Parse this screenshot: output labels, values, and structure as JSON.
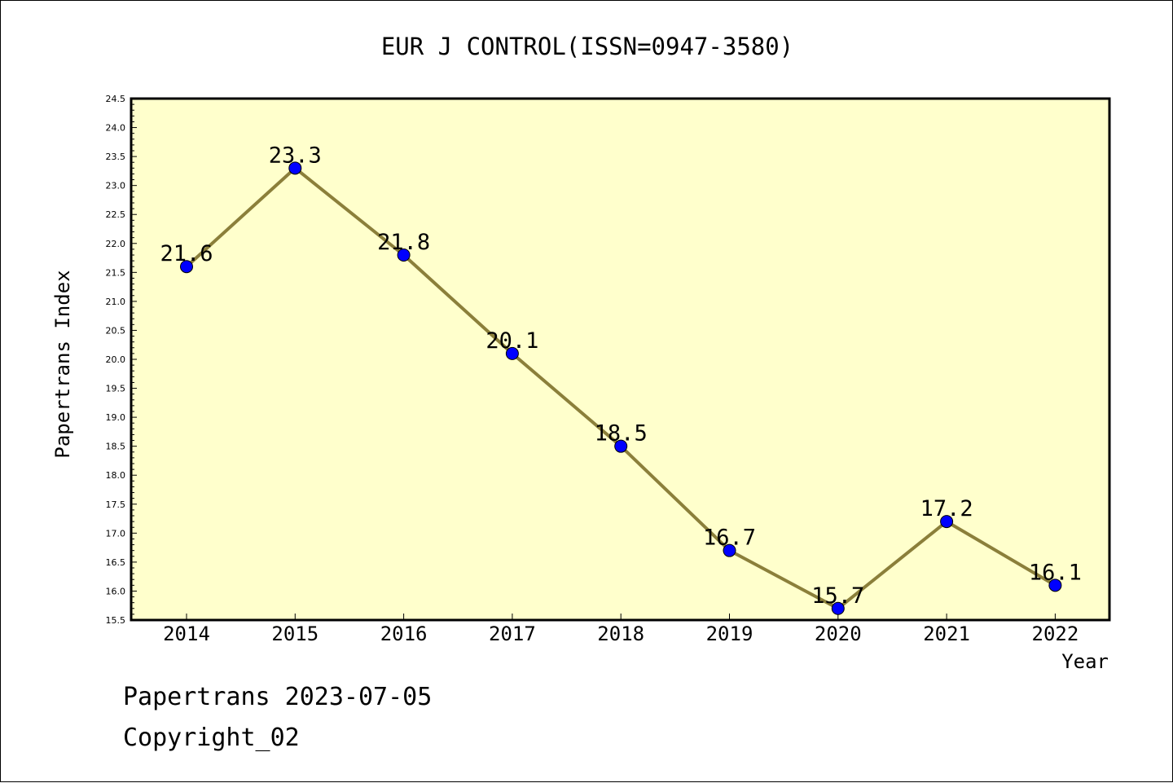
{
  "chart_data": {
    "type": "line",
    "title": "EUR J CONTROL(ISSN=0947-3580)",
    "xlabel": "Year",
    "ylabel": "Papertrans Index",
    "categories": [
      "2014",
      "2015",
      "2016",
      "2017",
      "2018",
      "2019",
      "2020",
      "2021",
      "2022"
    ],
    "series": [
      {
        "values": [
          21.6,
          23.3,
          21.8,
          20.1,
          18.5,
          16.7,
          15.7,
          17.2,
          16.1
        ],
        "data_labels": [
          "21.6",
          "23.3",
          "21.8",
          "20.1",
          "18.5",
          "16.7",
          "15.7",
          "17.2",
          "16.1"
        ]
      }
    ],
    "ylim": [
      15.5,
      24.5
    ],
    "yticks": [
      "15.5",
      "16.0",
      "16.5",
      "17.0",
      "17.5",
      "18.0",
      "18.5",
      "19.0",
      "19.5",
      "20.0",
      "20.5",
      "21.0",
      "21.5",
      "22.0",
      "22.5",
      "23.0",
      "23.5",
      "24.0",
      "24.5"
    ],
    "grid": false,
    "legend": "none"
  },
  "footer": {
    "line1": "Papertrans 2023-07-05",
    "line2": "Copyright_02"
  },
  "colors": {
    "plot_background": "#ffffcc",
    "line": "#8b7f3a",
    "marker": "#0000ff"
  }
}
